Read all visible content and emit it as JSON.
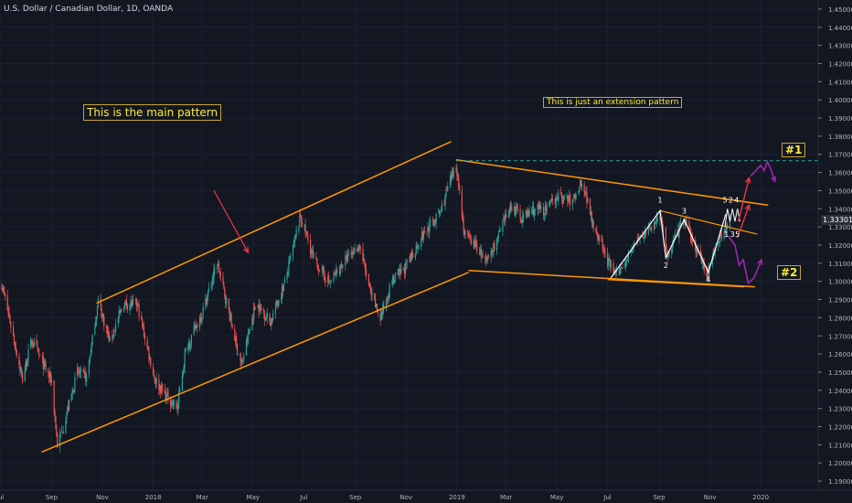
{
  "header": {
    "symbol_title": "U.S. Dollar / Canadian Dollar, 1D, OANDA"
  },
  "annotations": {
    "main_pattern": "This is the main pattern",
    "extension_pattern": "This is just an extension pattern",
    "scenario_1": "#1",
    "scenario_2": "#2",
    "wave_labels": [
      {
        "text": "1",
        "date": "2019-09-02",
        "price": 1.3435
      },
      {
        "text": "2",
        "date": "2019-09-09",
        "price": 1.3075
      },
      {
        "text": "3",
        "date": "2019-10-01",
        "price": 1.3375
      },
      {
        "text": "4",
        "date": "2019-10-30",
        "price": 1.2995
      },
      {
        "text": "5",
        "date": "2019-11-19",
        "price": 1.3435
      },
      {
        "text": "2",
        "date": "2019-11-26",
        "price": 1.3435
      },
      {
        "text": "4",
        "date": "2019-12-03",
        "price": 1.3435
      },
      {
        "text": "1",
        "date": "2019-11-21",
        "price": 1.3245
      },
      {
        "text": "3",
        "date": "2019-11-28",
        "price": 1.3245
      },
      {
        "text": "5",
        "date": "2019-12-04",
        "price": 1.3245
      }
    ]
  },
  "price_axis": {
    "current_price": "1.33301"
  },
  "colors": {
    "background": "#131722",
    "up_candle": "#26a69a",
    "down_candle": "#ef5350",
    "trendline": "#ff9800",
    "wave_lines": "#ffffff",
    "scenario_up": "#9c27b0",
    "red_arrow": "#f23645",
    "resistance_dashed": "#26a69a",
    "note_text": "#ffeb3b"
  },
  "chart_data": {
    "type": "candlestick",
    "title": "U.S. Dollar / Canadian Dollar, 1D, OANDA",
    "xlim": [
      "2017-07-01",
      "2020-03-10"
    ],
    "ylim": [
      1.185,
      1.455
    ],
    "x_ticks": [
      {
        "label": "Jul",
        "date": "2017-07-01"
      },
      {
        "label": "Sep",
        "date": "2017-09-01"
      },
      {
        "label": "Nov",
        "date": "2017-11-01"
      },
      {
        "label": "2018",
        "date": "2018-01-01"
      },
      {
        "label": "Mar",
        "date": "2018-03-01"
      },
      {
        "label": "May",
        "date": "2018-05-01"
      },
      {
        "label": "Jul",
        "date": "2018-07-01"
      },
      {
        "label": "Sep",
        "date": "2018-09-01"
      },
      {
        "label": "Nov",
        "date": "2018-11-01"
      },
      {
        "label": "2019",
        "date": "2019-01-01"
      },
      {
        "label": "Mar",
        "date": "2019-03-01"
      },
      {
        "label": "May",
        "date": "2019-05-01"
      },
      {
        "label": "Jul",
        "date": "2019-07-01"
      },
      {
        "label": "Sep",
        "date": "2019-09-01"
      },
      {
        "label": "Nov",
        "date": "2019-11-01"
      },
      {
        "label": "2020",
        "date": "2020-01-01"
      }
    ],
    "y_ticks": [
      "1.45000",
      "1.44000",
      "1.43000",
      "1.42000",
      "1.41000",
      "1.40000",
      "1.39000",
      "1.38000",
      "1.37000",
      "1.36000",
      "1.35000",
      "1.34000",
      "1.33000",
      "1.32000",
      "1.31000",
      "1.30000",
      "1.29000",
      "1.28000",
      "1.27000",
      "1.26000",
      "1.25000",
      "1.24000",
      "1.23000",
      "1.22000",
      "1.21000",
      "1.20000",
      "1.19000"
    ],
    "price_path": [
      {
        "date": "2017-07-03",
        "close": 1.299
      },
      {
        "date": "2017-07-14",
        "close": 1.276
      },
      {
        "date": "2017-07-28",
        "close": 1.246
      },
      {
        "date": "2017-08-08",
        "close": 1.268
      },
      {
        "date": "2017-08-18",
        "close": 1.258
      },
      {
        "date": "2017-09-01",
        "close": 1.245
      },
      {
        "date": "2017-09-08",
        "close": 1.21
      },
      {
        "date": "2017-09-15",
        "close": 1.22
      },
      {
        "date": "2017-10-02",
        "close": 1.25
      },
      {
        "date": "2017-10-13",
        "close": 1.247
      },
      {
        "date": "2017-10-27",
        "close": 1.289
      },
      {
        "date": "2017-11-10",
        "close": 1.267
      },
      {
        "date": "2017-11-27",
        "close": 1.288
      },
      {
        "date": "2017-12-13",
        "close": 1.287
      },
      {
        "date": "2018-01-03",
        "close": 1.246
      },
      {
        "date": "2018-01-15",
        "close": 1.238
      },
      {
        "date": "2018-01-30",
        "close": 1.23
      },
      {
        "date": "2018-02-09",
        "close": 1.262
      },
      {
        "date": "2018-03-01",
        "close": 1.283
      },
      {
        "date": "2018-03-19",
        "close": 1.31
      },
      {
        "date": "2018-03-30",
        "close": 1.289
      },
      {
        "date": "2018-04-17",
        "close": 1.253
      },
      {
        "date": "2018-05-04",
        "close": 1.288
      },
      {
        "date": "2018-05-22",
        "close": 1.278
      },
      {
        "date": "2018-06-08",
        "close": 1.299
      },
      {
        "date": "2018-06-27",
        "close": 1.336
      },
      {
        "date": "2018-07-13",
        "close": 1.312
      },
      {
        "date": "2018-08-01",
        "close": 1.299
      },
      {
        "date": "2018-08-17",
        "close": 1.31
      },
      {
        "date": "2018-09-06",
        "close": 1.32
      },
      {
        "date": "2018-09-20",
        "close": 1.292
      },
      {
        "date": "2018-10-01",
        "close": 1.28
      },
      {
        "date": "2018-10-15",
        "close": 1.3
      },
      {
        "date": "2018-11-01",
        "close": 1.308
      },
      {
        "date": "2018-11-20",
        "close": 1.325
      },
      {
        "date": "2018-12-12",
        "close": 1.338
      },
      {
        "date": "2018-12-31",
        "close": 1.365
      },
      {
        "date": "2019-01-10",
        "close": 1.326
      },
      {
        "date": "2019-01-25",
        "close": 1.319
      },
      {
        "date": "2019-02-05",
        "close": 1.31
      },
      {
        "date": "2019-02-20",
        "close": 1.325
      },
      {
        "date": "2019-03-07",
        "close": 1.342
      },
      {
        "date": "2019-03-20",
        "close": 1.335
      },
      {
        "date": "2019-04-05",
        "close": 1.34
      },
      {
        "date": "2019-04-18",
        "close": 1.339
      },
      {
        "date": "2019-05-01",
        "close": 1.347
      },
      {
        "date": "2019-05-20",
        "close": 1.344
      },
      {
        "date": "2019-05-31",
        "close": 1.356
      },
      {
        "date": "2019-06-14",
        "close": 1.332
      },
      {
        "date": "2019-07-01",
        "close": 1.311
      },
      {
        "date": "2019-07-12",
        "close": 1.303
      },
      {
        "date": "2019-08-01",
        "close": 1.32
      },
      {
        "date": "2019-08-23",
        "close": 1.33
      },
      {
        "date": "2019-09-02",
        "close": 1.338
      },
      {
        "date": "2019-09-10",
        "close": 1.314
      },
      {
        "date": "2019-10-01",
        "close": 1.334
      },
      {
        "date": "2019-10-15",
        "close": 1.318
      },
      {
        "date": "2019-10-29",
        "close": 1.304
      },
      {
        "date": "2019-11-08",
        "close": 1.32
      },
      {
        "date": "2019-11-20",
        "close": 1.33
      },
      {
        "date": "2019-11-25",
        "close": 1.333
      }
    ],
    "drawings": {
      "main_channel_upper": [
        [
          "2017-10-25",
          1.288
        ],
        [
          "2018-12-25",
          1.377
        ]
      ],
      "main_channel_lower": [
        [
          "2017-08-20",
          1.206
        ],
        [
          "2019-01-15",
          1.305
        ]
      ],
      "extension_upper": [
        [
          "2018-12-31",
          1.367
        ],
        [
          "2020-01-10",
          1.342
        ]
      ],
      "extension_lower": [
        [
          "2019-01-15",
          1.306
        ],
        [
          "2019-12-25",
          1.297
        ]
      ],
      "inner_upper": [
        [
          "2019-09-02",
          1.339
        ],
        [
          "2019-12-28",
          1.326
        ]
      ],
      "inner_lower": [
        [
          "2019-07-01",
          1.301
        ],
        [
          "2019-12-12",
          1.297
        ]
      ],
      "resistance_level": 1.3665,
      "wave_path": [
        [
          "2019-07-05",
          1.302
        ],
        [
          "2019-09-02",
          1.339
        ],
        [
          "2019-09-09",
          1.313
        ],
        [
          "2019-10-01",
          1.334
        ],
        [
          "2019-10-30",
          1.305
        ],
        [
          "2019-11-20",
          1.337
        ]
      ],
      "subwave_path": [
        [
          "2019-11-19",
          1.33
        ],
        [
          "2019-11-22",
          1.34
        ],
        [
          "2019-11-25",
          1.333
        ],
        [
          "2019-11-28",
          1.34
        ],
        [
          "2019-12-01",
          1.333
        ],
        [
          "2019-12-04",
          1.34
        ],
        [
          "2019-12-07",
          1.333
        ]
      ],
      "scenario_1_path": [
        [
          "2019-12-05",
          1.333
        ],
        [
          "2019-12-18",
          1.357
        ]
      ],
      "scenario_1_top": [
        [
          "2019-12-20",
          1.358
        ],
        [
          "2020-01-01",
          1.364
        ],
        [
          "2020-01-05",
          1.361
        ],
        [
          "2020-01-09",
          1.366
        ],
        [
          "2020-01-13",
          1.362
        ],
        [
          "2020-01-18",
          1.355
        ]
      ],
      "scenario_2_path": [
        [
          "2019-11-23",
          1.325
        ],
        [
          "2019-12-01",
          1.32
        ],
        [
          "2019-12-06",
          1.309
        ],
        [
          "2019-12-11",
          1.312
        ],
        [
          "2019-12-17",
          1.299
        ],
        [
          "2019-12-24",
          1.302
        ],
        [
          "2020-01-02",
          1.312
        ]
      ],
      "red_arrow_1": [
        [
          "2018-03-15",
          1.35
        ],
        [
          "2018-04-25",
          1.316
        ]
      ],
      "red_arrow_2": [
        [
          "2019-12-04",
          1.324
        ],
        [
          "2019-12-18",
          1.342
        ]
      ]
    }
  }
}
